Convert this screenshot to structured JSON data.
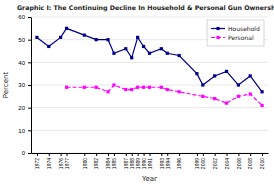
{
  "chart_data": {
    "type": "line",
    "title": "Graphic I: The Continuing Decline In Household & Personal Gun Ownership",
    "x_label": "Year",
    "y_label": "Percent",
    "series": [
      {
        "name": "Household",
        "color": "#00008B",
        "marker": "square",
        "line_style": "solid",
        "x": [
          1972,
          1974,
          1976,
          1977,
          1980,
          1982,
          1984,
          1985,
          1987,
          1988,
          1989,
          1990,
          1991,
          1993,
          1994,
          1996,
          1999,
          2000,
          2002,
          2004,
          2006,
          2008,
          2010
        ],
        "values": [
          51,
          47,
          51,
          55,
          52,
          50,
          50,
          44,
          46,
          42,
          51,
          47,
          44,
          46,
          44,
          43,
          35,
          30,
          34,
          36,
          30,
          34,
          27
        ]
      },
      {
        "name": "Personal",
        "color": "#FF00FF",
        "marker": "square",
        "line_style": "dashed",
        "x": [
          1977,
          1980,
          1982,
          1984,
          1985,
          1987,
          1988,
          1989,
          1990,
          1991,
          1993,
          1994,
          1996,
          2000,
          2002,
          2004,
          2006,
          2008,
          2010
        ],
        "values": [
          29,
          29,
          29,
          27,
          30,
          28,
          28,
          29,
          29,
          29,
          29,
          28,
          27,
          25,
          24,
          22,
          25,
          26,
          21
        ]
      }
    ],
    "xlim": [
      1971,
      2011
    ],
    "xticks": [
      1972,
      1974,
      1976,
      1977,
      1980,
      1982,
      1984,
      1985,
      1987,
      1988,
      1989,
      1990,
      1991,
      1993,
      1994,
      1996,
      1999,
      2000,
      2002,
      2004,
      2006,
      2008,
      2010
    ],
    "ylim": [
      0,
      60
    ],
    "yticks": [
      0,
      10,
      20,
      30,
      40,
      50,
      60
    ],
    "grid": true,
    "legend": "upper right"
  }
}
